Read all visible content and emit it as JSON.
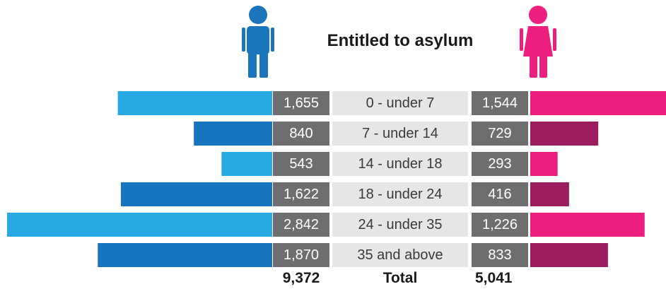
{
  "chart_data": {
    "type": "bar",
    "title": "Entitled to asylum",
    "categories": [
      "0 - under 7",
      "7 - under 14",
      "14 - under 18",
      "18 - under 24",
      "24 - under 35",
      "35 and above"
    ],
    "series": [
      {
        "values": [
          1655,
          840,
          543,
          1622,
          2842,
          1870
        ],
        "labels": [
          "1,655",
          "840",
          "543",
          "1,622",
          "2,842",
          "1,870"
        ],
        "colors": [
          "#29a9e1",
          "#1775bf"
        ]
      },
      {
        "values": [
          1544,
          729,
          293,
          416,
          1226,
          833
        ],
        "labels": [
          "1,544",
          "729",
          "293",
          "416",
          "1,226",
          "833"
        ],
        "colors": [
          "#ec1f7e",
          "#9c1d5e"
        ]
      }
    ],
    "total": {
      "label": "Total",
      "left": "9,372",
      "right": "5,041"
    },
    "icons": {
      "left": "male-person-icon",
      "right": "female-person-icon"
    },
    "colors": {
      "male_icon": "#1b75bb",
      "female_icon": "#ec1f7e",
      "value_box": "#6e6e70",
      "label_box": "#e6e6e6"
    }
  }
}
